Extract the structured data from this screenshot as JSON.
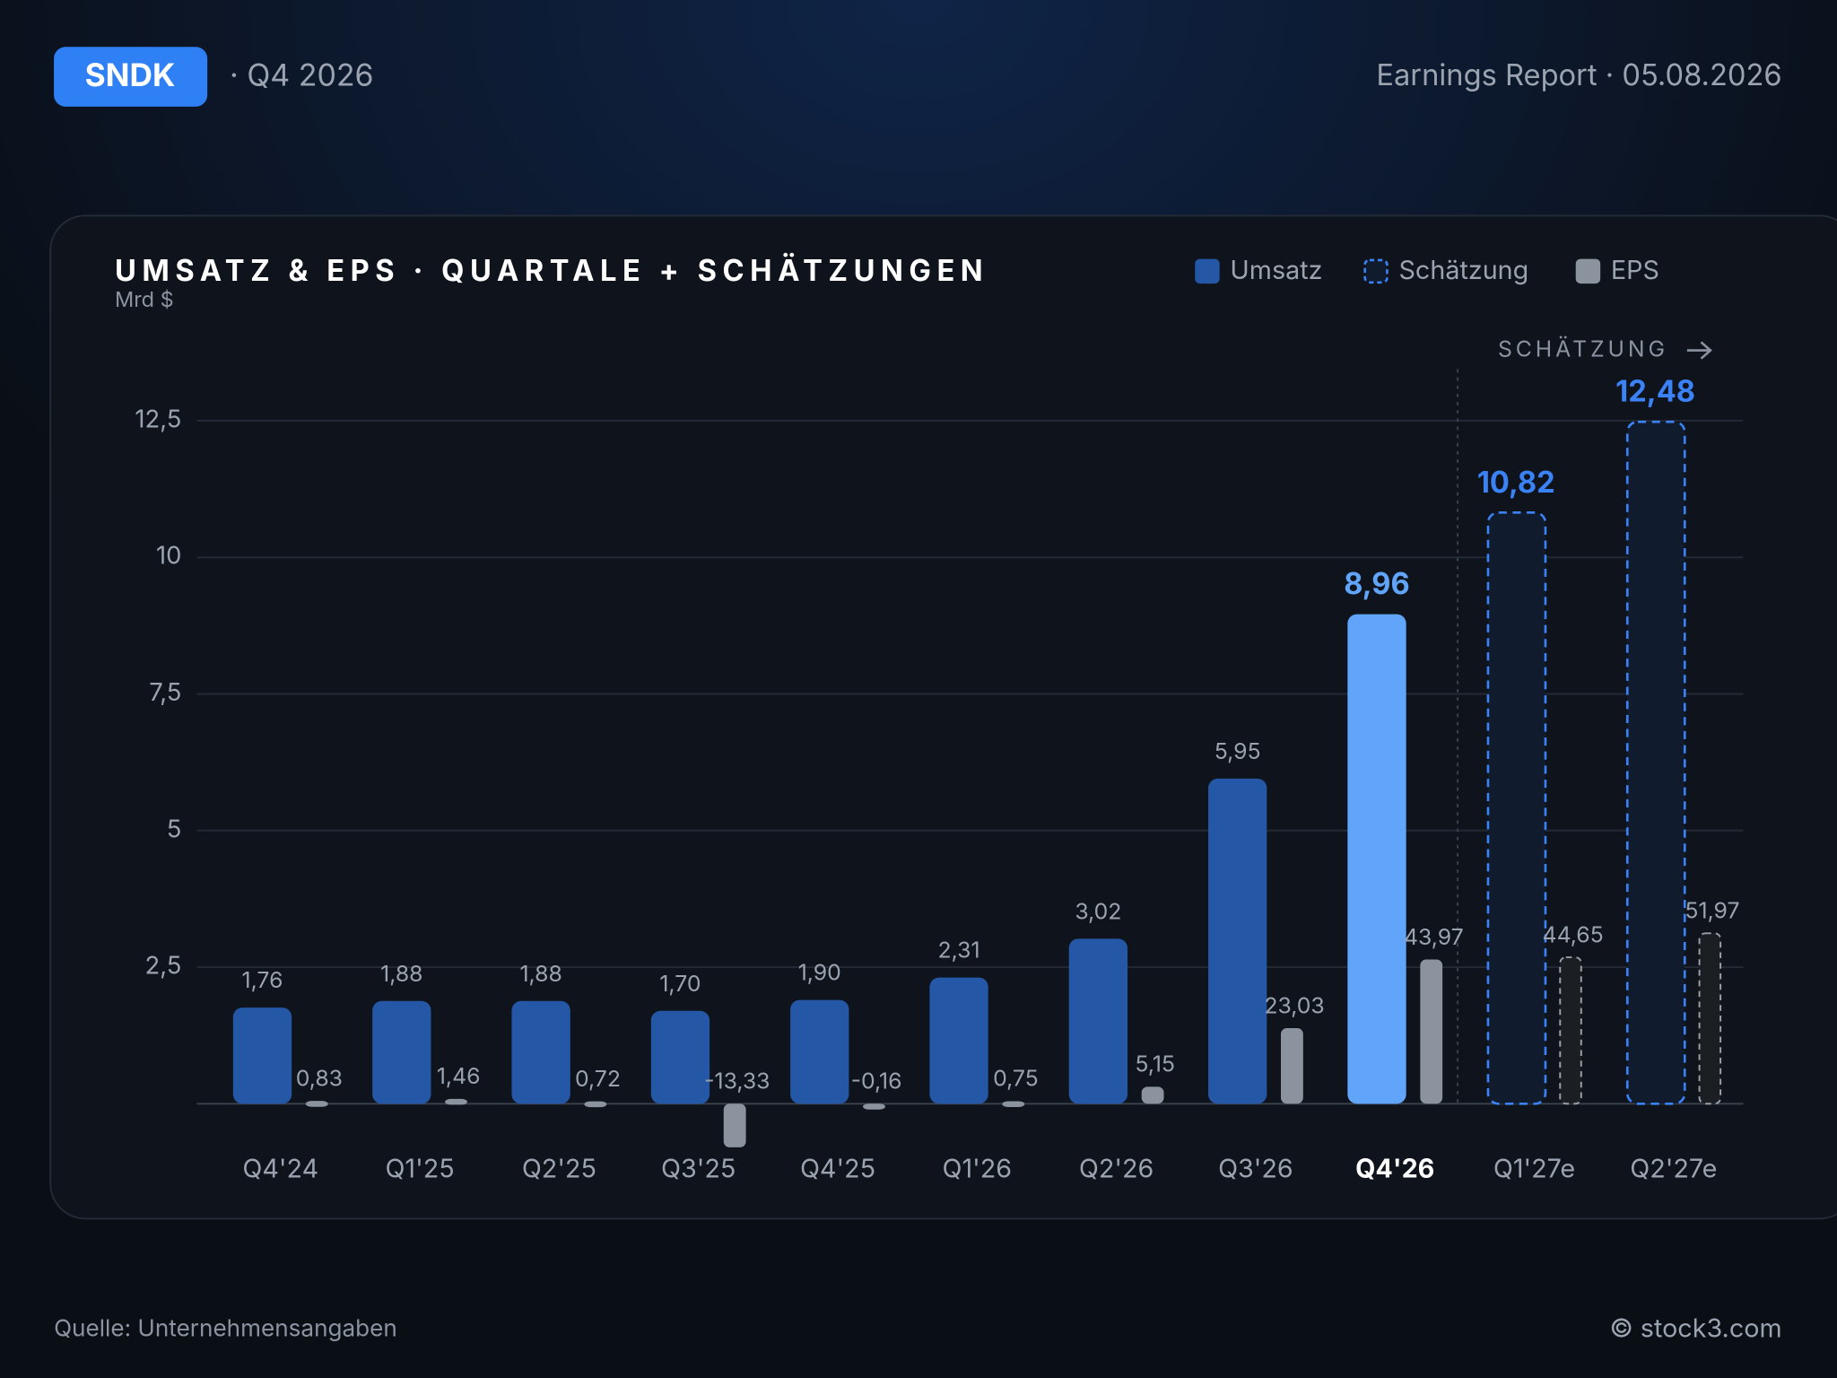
{
  "header": {
    "ticker": "SNDK",
    "period": "· Q4 2026",
    "report": "Earnings Report · 05.08.2026"
  },
  "chart_data": {
    "type": "bar",
    "title": "UMSATZ & EPS · QUARTALE + SCHÄTZUNGEN",
    "subtitle": "Mrd $",
    "annotation": "SCHÄTZUNG",
    "categories": [
      "Q4'24",
      "Q1'25",
      "Q2'25",
      "Q3'25",
      "Q4'25",
      "Q1'26",
      "Q2'26",
      "Q3'26",
      "Q4'26",
      "Q1'27e",
      "Q2'27e"
    ],
    "highlight_index": 8,
    "series": [
      {
        "name": "Umsatz",
        "color": "#2457a6",
        "highlight_color": "#60a5fa",
        "values": [
          1.76,
          1.88,
          1.88,
          1.7,
          1.9,
          2.31,
          3.02,
          5.95,
          8.96,
          null,
          null
        ],
        "value_labels": [
          "1,76",
          "1,88",
          "1,88",
          "1,70",
          "1,90",
          "2,31",
          "3,02",
          "5,95",
          "8,96",
          null,
          null
        ]
      },
      {
        "name": "Schätzung",
        "color": "#3b82f6",
        "dashed": true,
        "values": [
          null,
          null,
          null,
          null,
          null,
          null,
          null,
          null,
          null,
          10.82,
          12.48
        ],
        "value_labels": [
          null,
          null,
          null,
          null,
          null,
          null,
          null,
          null,
          null,
          "10,82",
          "12,48"
        ]
      },
      {
        "name": "EPS",
        "color": "#8a939e",
        "axis": "y2",
        "values": [
          0.83,
          1.46,
          0.72,
          -13.33,
          -0.16,
          0.75,
          5.15,
          23.03,
          43.97,
          44.65,
          51.97
        ],
        "value_labels": [
          "0,83",
          "1,46",
          "0,72",
          "-13,33",
          "-0,16",
          "0,75",
          "5,15",
          "23,03",
          "43,97",
          "44,65",
          "51,97"
        ]
      }
    ],
    "ylim": [
      -1,
      13.5
    ],
    "yticks": [
      {
        "value": 2.5,
        "label": "2,5"
      },
      5,
      {
        "value": 7.5,
        "label": "7,5"
      },
      10,
      {
        "value": 12.5,
        "label": "12,5"
      }
    ],
    "y2lim": [
      -16.7,
      225
    ],
    "grid": true
  },
  "footer": {
    "source": "Quelle: Unternehmensangaben",
    "copyright": "© stock3.com"
  }
}
